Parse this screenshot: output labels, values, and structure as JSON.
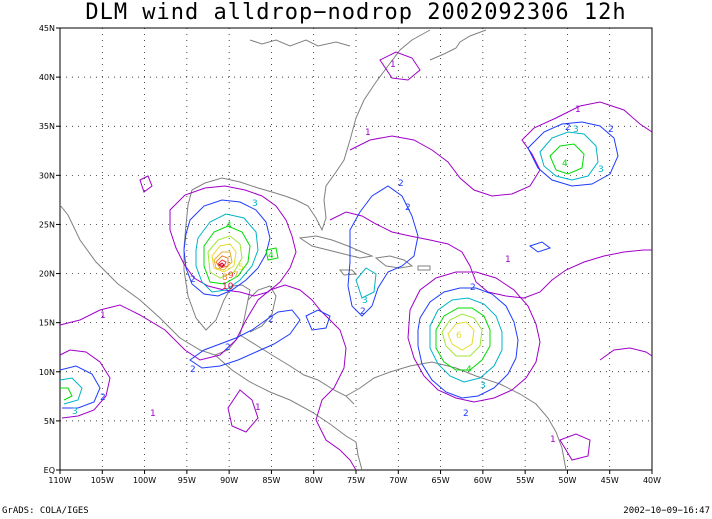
{
  "title": "DLM wind alldrop−nodrop 2002092306 12h",
  "footer": {
    "left": "GrADS: COLA/IGES",
    "right": "2002−10−09−16:47"
  },
  "map": {
    "lon_range": [
      -110,
      -40
    ],
    "lat_range": [
      0,
      45
    ],
    "lon_ticks": [
      "110W",
      "105W",
      "100W",
      "95W",
      "90W",
      "85W",
      "80W",
      "75W",
      "70W",
      "65W",
      "60W",
      "55W",
      "50W",
      "45W",
      "40W"
    ],
    "lat_ticks": [
      "EQ",
      "5N",
      "10N",
      "15N",
      "20N",
      "25N",
      "30N",
      "35N",
      "40N",
      "45N"
    ]
  },
  "colors": {
    "c1": "#a000c8",
    "c2": "#1e3cff",
    "c3": "#00b4c8",
    "c4": "#00dc00",
    "c5": "#a0e632",
    "c6": "#e6dc32",
    "c7": "#e6af2d",
    "c8": "#f08228",
    "c9": "#fa3c3c",
    "c10": "#c8003c",
    "land": "#808080",
    "grid": "#000000"
  },
  "contour_labels": {
    "l1": "1",
    "l2": "2",
    "l3": "3",
    "l4": "4",
    "l5": "5",
    "l6": "6",
    "l7": "7",
    "l8": "8",
    "l9": "9",
    "l10": "10"
  }
}
